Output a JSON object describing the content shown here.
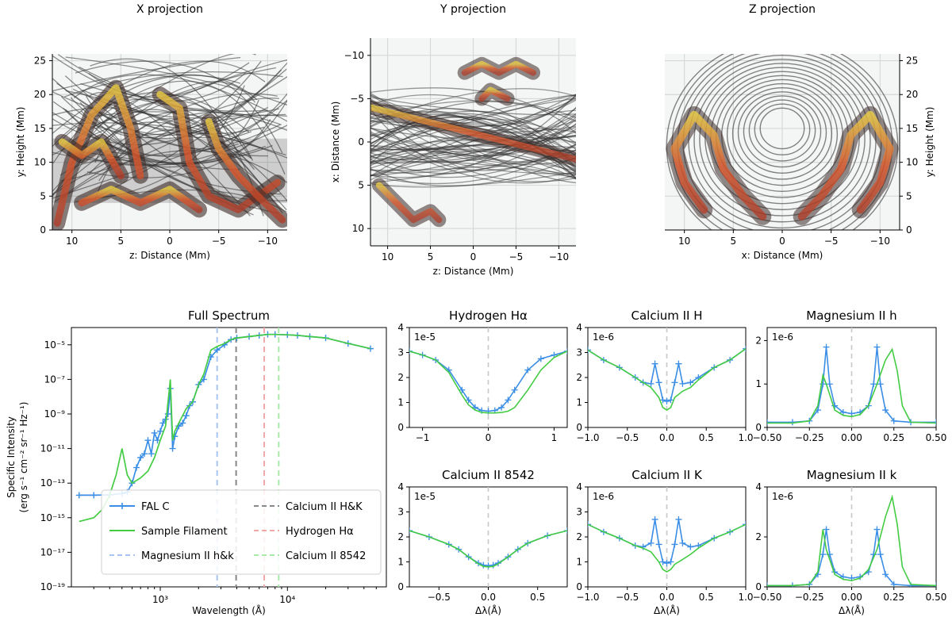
{
  "chart_data": [
    {
      "type": "scatter",
      "title": "X projection",
      "xlabel": "z: Distance (Mm)",
      "ylabel": "y: Height (Mm)",
      "xlim": [
        12,
        -12
      ],
      "ylim": [
        0,
        26
      ],
      "xticks": [
        10,
        5,
        0,
        -5,
        -10
      ],
      "xtick_labels": [
        "10",
        "5",
        "0",
        "−5",
        "−10"
      ],
      "yticks": [
        0,
        5,
        10,
        15,
        20,
        25
      ],
      "ytick_labels": [
        "0",
        "5",
        "10",
        "15",
        "20",
        "25"
      ],
      "grid": true
    },
    {
      "type": "scatter",
      "title": "Y projection",
      "xlabel": "z: Distance (Mm)",
      "ylabel": "x: Distance (Mm)",
      "xlim": [
        12,
        -12
      ],
      "ylim": [
        12,
        -12
      ],
      "xticks": [
        10,
        5,
        0,
        -5,
        -10
      ],
      "xtick_labels": [
        "10",
        "5",
        "0",
        "−5",
        "−10"
      ],
      "yticks": [
        -10,
        -5,
        0,
        5,
        10
      ],
      "ytick_labels": [
        "−10",
        "−5",
        "0",
        "5",
        "10"
      ],
      "grid": true
    },
    {
      "type": "scatter",
      "title": "Z projection",
      "xlabel": "x: Distance (Mm)",
      "ylabel": "y: Height (Mm)",
      "xlim": [
        12,
        -12
      ],
      "ylim": [
        0,
        26
      ],
      "xticks": [
        10,
        5,
        0,
        -5,
        -10
      ],
      "xtick_labels": [
        "10",
        "5",
        "0",
        "−5",
        "−10"
      ],
      "yticks": [
        0,
        5,
        10,
        15,
        20,
        25
      ],
      "ytick_labels": [
        "0",
        "5",
        "10",
        "15",
        "20",
        "25"
      ],
      "grid": true
    },
    {
      "type": "line",
      "title": "Full Spectrum",
      "xlabel": "Wavelength (Å)",
      "ylabel": "Specific Intensity (erg s⁻¹ cm⁻² sr⁻¹ Hz⁻¹)",
      "xscale": "log",
      "yscale": "log",
      "xlim": [
        200,
        60000
      ],
      "ylim": [
        1e-19,
        0.0001
      ],
      "xticks": [
        1000,
        10000
      ],
      "xtick_labels": [
        "10³",
        "10⁴"
      ],
      "yticks": [
        1e-19,
        1e-17,
        1e-15,
        1e-13,
        1e-11,
        1e-09,
        1e-07,
        1e-05
      ],
      "ytick_labels": [
        "10⁻¹⁹",
        "10⁻¹⁷",
        "10⁻¹⁵",
        "10⁻¹³",
        "10⁻¹¹",
        "10⁻⁹",
        "10⁻⁷",
        "10⁻⁵"
      ],
      "series": [
        {
          "name": "FAL C",
          "color": "#3b8ee6",
          "marker": "+",
          "x": [
            230,
            300,
            400,
            500,
            550,
            600,
            650,
            700,
            750,
            800,
            850,
            900,
            950,
            1000,
            1050,
            1100,
            1150,
            1200,
            1250,
            1300,
            1400,
            1500,
            1600,
            1700,
            1800,
            2000,
            2200,
            2500,
            2800,
            3200,
            3600,
            4000,
            5000,
            6000,
            7000,
            8000,
            10000,
            12000,
            15000,
            20000,
            30000,
            45000
          ],
          "y": [
            2e-14,
            2e-14,
            2.1e-14,
            2.5e-14,
            3e-14,
            1e-13,
            8e-13,
            3e-12,
            5e-12,
            3e-11,
            5e-12,
            8e-11,
            3e-11,
            1e-10,
            3e-10,
            5e-10,
            1e-09,
            3e-08,
            1e-11,
            5e-11,
            2e-10,
            3e-10,
            8e-10,
            3e-09,
            5e-09,
            5e-08,
            1e-07,
            2e-06,
            5e-06,
            1e-05,
            2e-05,
            2.5e-05,
            3e-05,
            3.5e-05,
            4e-05,
            4e-05,
            3.8e-05,
            3.5e-05,
            3e-05,
            2.5e-05,
            1.2e-05,
            6e-06
          ]
        },
        {
          "name": "Sample Filament",
          "color": "#44cc44",
          "x": [
            230,
            300,
            350,
            400,
            450,
            500,
            550,
            600,
            700,
            800,
            900,
            1000,
            1100,
            1200,
            1250,
            1300,
            1400,
            1600,
            1800,
            2000,
            2200,
            2500,
            2800,
            3200,
            3600,
            4000,
            5000,
            6000,
            7000,
            8000,
            10000,
            12000,
            15000,
            20000,
            30000,
            45000
          ],
          "y": [
            6e-16,
            1e-15,
            3e-15,
            2e-14,
            3e-13,
            1e-11,
            3e-13,
            1e-13,
            2e-13,
            5e-13,
            3e-12,
            3e-11,
            2e-10,
            1e-07,
            3e-11,
            1e-10,
            3e-10,
            2e-09,
            5e-09,
            5e-08,
            2e-07,
            5e-06,
            8e-06,
            1.2e-05,
            2e-05,
            2.5e-05,
            3e-05,
            3.5e-05,
            4e-05,
            4e-05,
            3.8e-05,
            3.5e-05,
            3e-05,
            2.5e-05,
            1.2e-05,
            6e-06
          ]
        }
      ],
      "vlines": [
        {
          "name": "Magnesium II h&k",
          "x": 2800,
          "color": "#a8c4f0"
        },
        {
          "name": "Calcium II H&K",
          "x": 3950,
          "color": "#888888"
        },
        {
          "name": "Hydrogen Hα",
          "x": 6563,
          "color": "#f0a8a8"
        },
        {
          "name": "Calcium II 8542",
          "x": 8542,
          "color": "#a8e8a8"
        }
      ],
      "legend": [
        {
          "label": "FAL C",
          "color": "#3b8ee6",
          "style": "marker"
        },
        {
          "label": "Sample Filament",
          "color": "#44cc44",
          "style": "solid"
        },
        {
          "label": "Magnesium II h&k",
          "color": "#a8c4f0",
          "style": "dashed"
        },
        {
          "label": "Calcium II H&K",
          "color": "#888888",
          "style": "dashed"
        },
        {
          "label": "Hydrogen Hα",
          "color": "#f0a8a8",
          "style": "dashed"
        },
        {
          "label": "Calcium II 8542",
          "color": "#a8e8a8",
          "style": "dashed"
        }
      ],
      "legend_position": "lower-center"
    },
    {
      "type": "line",
      "title": "Hydrogen Hα",
      "xlabel": "",
      "xlim": [
        -1.2,
        1.2
      ],
      "ylim": [
        0,
        4
      ],
      "xticks": [
        -1,
        0,
        1
      ],
      "xtick_labels": [
        "−1",
        "0",
        "1"
      ],
      "yticks": [
        0,
        1,
        2,
        3,
        4
      ],
      "ytick_labels": [
        "0",
        "1",
        "2",
        "3",
        "4"
      ],
      "scale_label": "1e-5",
      "series": [
        {
          "name": "FAL C",
          "color": "#3b8ee6",
          "marker": "+",
          "x": [
            -1.2,
            -1.0,
            -0.8,
            -0.6,
            -0.4,
            -0.3,
            -0.2,
            -0.1,
            0,
            0.1,
            0.2,
            0.3,
            0.4,
            0.6,
            0.8,
            1.0,
            1.2
          ],
          "y": [
            3.05,
            2.9,
            2.7,
            2.3,
            1.5,
            1.1,
            0.8,
            0.68,
            0.65,
            0.68,
            0.8,
            1.1,
            1.5,
            2.3,
            2.75,
            2.9,
            3.05
          ]
        },
        {
          "name": "Sample Filament",
          "color": "#44cc44",
          "x": [
            -1.2,
            -1.0,
            -0.8,
            -0.6,
            -0.4,
            -0.3,
            -0.2,
            -0.1,
            0,
            0.1,
            0.2,
            0.3,
            0.4,
            0.6,
            0.8,
            1.0,
            1.2
          ],
          "y": [
            3.05,
            2.9,
            2.7,
            2.2,
            1.3,
            0.9,
            0.7,
            0.6,
            0.58,
            0.58,
            0.6,
            0.65,
            0.8,
            1.5,
            2.3,
            2.8,
            3.05
          ]
        }
      ]
    },
    {
      "type": "line",
      "title": "Calcium II H",
      "xlabel": "",
      "xlim": [
        -1.0,
        1.0
      ],
      "ylim": [
        0,
        4
      ],
      "xticks": [
        -1.0,
        -0.5,
        0.0,
        0.5,
        1.0
      ],
      "xtick_labels": [
        "−1.0",
        "−0.5",
        "0.0",
        "0.5",
        "1.0"
      ],
      "yticks": [
        0,
        1,
        2,
        3,
        4
      ],
      "ytick_labels": [
        "0",
        "1",
        "2",
        "3",
        "4"
      ],
      "scale_label": "1e-6",
      "series": [
        {
          "name": "FAL C",
          "color": "#3b8ee6",
          "marker": "+",
          "x": [
            -1.0,
            -0.8,
            -0.6,
            -0.4,
            -0.3,
            -0.2,
            -0.15,
            -0.1,
            -0.05,
            0,
            0.05,
            0.1,
            0.15,
            0.2,
            0.3,
            0.4,
            0.6,
            0.8,
            1.0
          ],
          "y": [
            3.1,
            2.7,
            2.4,
            2.0,
            1.8,
            1.75,
            2.55,
            1.8,
            1.1,
            1.05,
            1.1,
            1.8,
            2.55,
            1.75,
            1.8,
            2.0,
            2.4,
            2.7,
            3.15
          ]
        },
        {
          "name": "Sample Filament",
          "color": "#44cc44",
          "x": [
            -1.0,
            -0.8,
            -0.6,
            -0.4,
            -0.3,
            -0.2,
            -0.1,
            -0.05,
            0,
            0.05,
            0.1,
            0.2,
            0.3,
            0.4,
            0.6,
            0.8,
            1.0
          ],
          "y": [
            3.1,
            2.7,
            2.4,
            2.0,
            1.8,
            1.6,
            1.2,
            0.8,
            0.7,
            0.8,
            1.2,
            1.45,
            1.6,
            1.9,
            2.4,
            2.7,
            3.15
          ]
        }
      ]
    },
    {
      "type": "line",
      "title": "Magnesium II h",
      "xlabel": "",
      "xlim": [
        -0.5,
        0.5
      ],
      "ylim": [
        0,
        2.3
      ],
      "xticks": [
        -0.5,
        -0.25,
        0.0,
        0.25,
        0.5
      ],
      "xtick_labels": [
        "−0.50",
        "−0.25",
        "0.00",
        "0.25",
        "0.50"
      ],
      "yticks": [
        0,
        1,
        2
      ],
      "ytick_labels": [
        "0",
        "1",
        "2"
      ],
      "scale_label": "1e-6",
      "series": [
        {
          "name": "FAL C",
          "color": "#3b8ee6",
          "marker": "+",
          "x": [
            -0.5,
            -0.35,
            -0.25,
            -0.2,
            -0.17,
            -0.15,
            -0.13,
            -0.1,
            -0.05,
            0,
            0.05,
            0.1,
            0.13,
            0.15,
            0.17,
            0.2,
            0.25,
            0.35,
            0.5
          ],
          "y": [
            0.12,
            0.12,
            0.15,
            0.4,
            1.0,
            1.85,
            1.0,
            0.5,
            0.35,
            0.32,
            0.35,
            0.5,
            1.0,
            1.85,
            1.0,
            0.4,
            0.15,
            0.12,
            0.12
          ]
        },
        {
          "name": "Sample Filament",
          "color": "#44cc44",
          "x": [
            -0.5,
            -0.35,
            -0.25,
            -0.2,
            -0.17,
            -0.15,
            -0.1,
            -0.05,
            0,
            0.05,
            0.1,
            0.15,
            0.2,
            0.24,
            0.27,
            0.3,
            0.35,
            0.5
          ],
          "y": [
            0.1,
            0.1,
            0.15,
            0.5,
            1.2,
            1.0,
            0.4,
            0.28,
            0.25,
            0.3,
            0.5,
            1.0,
            1.55,
            1.8,
            1.3,
            0.5,
            0.12,
            0.1
          ]
        }
      ]
    },
    {
      "type": "line",
      "title": "Calcium II 8542",
      "xlabel": "Δλ(Å)",
      "xlim": [
        -0.8,
        0.8
      ],
      "ylim": [
        0,
        4
      ],
      "xticks": [
        -0.5,
        0.0,
        0.5
      ],
      "xtick_labels": [
        "−0.5",
        "0.0",
        "0.5"
      ],
      "yticks": [
        0,
        1,
        2,
        3,
        4
      ],
      "ytick_labels": [
        "0",
        "1",
        "2",
        "3",
        "4"
      ],
      "scale_label": "1e-5",
      "series": [
        {
          "name": "FAL C",
          "color": "#3b8ee6",
          "marker": "+",
          "x": [
            -0.8,
            -0.6,
            -0.4,
            -0.3,
            -0.2,
            -0.1,
            -0.05,
            0,
            0.05,
            0.1,
            0.2,
            0.3,
            0.4,
            0.6,
            0.8
          ],
          "y": [
            2.25,
            2.0,
            1.7,
            1.5,
            1.2,
            0.95,
            0.87,
            0.85,
            0.87,
            0.95,
            1.2,
            1.5,
            1.75,
            2.05,
            2.25
          ]
        },
        {
          "name": "Sample Filament",
          "color": "#44cc44",
          "x": [
            -0.8,
            -0.6,
            -0.4,
            -0.3,
            -0.2,
            -0.1,
            -0.05,
            0,
            0.05,
            0.1,
            0.2,
            0.3,
            0.4,
            0.6,
            0.8
          ],
          "y": [
            2.25,
            2.0,
            1.7,
            1.5,
            1.2,
            0.92,
            0.82,
            0.8,
            0.82,
            0.92,
            1.2,
            1.5,
            1.75,
            2.05,
            2.25
          ]
        }
      ]
    },
    {
      "type": "line",
      "title": "Calcium II K",
      "xlabel": "Δλ(Å)",
      "xlim": [
        -1.0,
        1.0
      ],
      "ylim": [
        0,
        4
      ],
      "xticks": [
        -1.0,
        -0.5,
        0.0,
        0.5,
        1.0
      ],
      "xtick_labels": [
        "−1.0",
        "−0.5",
        "0.0",
        "0.5",
        "1.0"
      ],
      "yticks": [
        0,
        1,
        2,
        3,
        4
      ],
      "ytick_labels": [
        "0",
        "1",
        "2",
        "3",
        "4"
      ],
      "scale_label": "1e-6",
      "series": [
        {
          "name": "FAL C",
          "color": "#3b8ee6",
          "marker": "+",
          "x": [
            -1.0,
            -0.8,
            -0.6,
            -0.4,
            -0.3,
            -0.2,
            -0.15,
            -0.1,
            -0.05,
            0,
            0.05,
            0.1,
            0.15,
            0.2,
            0.3,
            0.4,
            0.6,
            0.8,
            1.0
          ],
          "y": [
            2.5,
            2.2,
            1.95,
            1.65,
            1.6,
            1.75,
            2.7,
            1.7,
            1.0,
            0.95,
            1.0,
            1.7,
            2.7,
            1.75,
            1.6,
            1.65,
            1.95,
            2.2,
            2.5
          ]
        },
        {
          "name": "Sample Filament",
          "color": "#44cc44",
          "x": [
            -1.0,
            -0.8,
            -0.6,
            -0.4,
            -0.3,
            -0.2,
            -0.1,
            -0.05,
            0,
            0.05,
            0.1,
            0.2,
            0.3,
            0.4,
            0.6,
            0.8,
            1.0
          ],
          "y": [
            2.5,
            2.2,
            1.95,
            1.65,
            1.55,
            1.4,
            1.0,
            0.7,
            0.6,
            0.7,
            0.9,
            1.1,
            1.3,
            1.55,
            1.95,
            2.2,
            2.5
          ]
        }
      ]
    },
    {
      "type": "line",
      "title": "Magnesium II k",
      "xlabel": "Δλ(Å)",
      "xlim": [
        -0.5,
        0.5
      ],
      "ylim": [
        0,
        4
      ],
      "xticks": [
        -0.5,
        -0.25,
        0.0,
        0.25,
        0.5
      ],
      "xtick_labels": [
        "−0.50",
        "−0.25",
        "0.00",
        "0.25",
        "0.50"
      ],
      "yticks": [
        0,
        2,
        4
      ],
      "ytick_labels": [
        "0",
        "2",
        "4"
      ],
      "scale_label": "1e-6",
      "series": [
        {
          "name": "FAL C",
          "color": "#3b8ee6",
          "marker": "+",
          "x": [
            -0.5,
            -0.35,
            -0.25,
            -0.2,
            -0.17,
            -0.15,
            -0.13,
            -0.1,
            -0.05,
            0,
            0.05,
            0.1,
            0.13,
            0.15,
            0.17,
            0.2,
            0.25,
            0.35,
            0.5
          ],
          "y": [
            0.05,
            0.05,
            0.1,
            0.5,
            1.3,
            2.3,
            1.3,
            0.6,
            0.4,
            0.35,
            0.4,
            0.6,
            1.3,
            2.3,
            1.3,
            0.5,
            0.1,
            0.05,
            0.05
          ]
        },
        {
          "name": "Sample Filament",
          "color": "#44cc44",
          "x": [
            -0.5,
            -0.35,
            -0.25,
            -0.2,
            -0.17,
            -0.15,
            -0.1,
            -0.05,
            0,
            0.05,
            0.1,
            0.15,
            0.2,
            0.24,
            0.27,
            0.3,
            0.35,
            0.5
          ],
          "y": [
            0.05,
            0.05,
            0.1,
            0.6,
            2.3,
            1.5,
            0.5,
            0.3,
            0.25,
            0.35,
            0.7,
            1.5,
            2.8,
            3.6,
            2.5,
            0.8,
            0.1,
            0.05
          ]
        }
      ]
    }
  ]
}
